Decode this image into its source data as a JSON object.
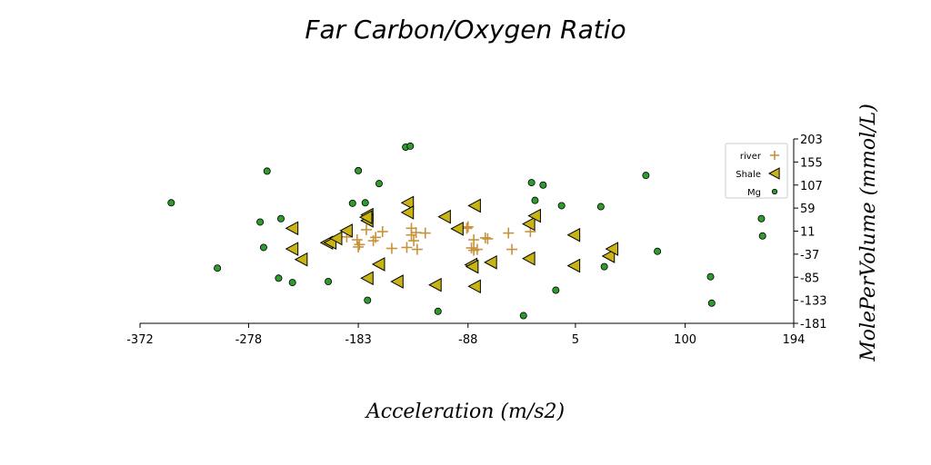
{
  "chart_data": {
    "type": "scatter",
    "title": "Far Carbon/Oxygen Ratio",
    "xlabel": "Acceleration (m/s2)",
    "ylabel": "MolePerVolume (mmol/L)",
    "xlim": [
      -372,
      194
    ],
    "ylim": [
      -181,
      203
    ],
    "xticks": [
      -372,
      -278,
      -183,
      -88,
      5,
      100,
      194
    ],
    "yticks": [
      -181,
      -133,
      -85,
      -37,
      11,
      59,
      107,
      155,
      203
    ],
    "grid": false,
    "legend_position": "top-right",
    "colors": {
      "river": "#c8923c",
      "Shale": "#c8b414",
      "Mg": "#2e9b2e"
    },
    "series": [
      {
        "name": "river",
        "marker": "plus",
        "points": [
          [
            -193,
            -1
          ],
          [
            -184,
            -7
          ],
          [
            -182,
            -17
          ],
          [
            -183,
            -22
          ],
          [
            -176,
            14
          ],
          [
            -170,
            -9
          ],
          [
            -168,
            -2
          ],
          [
            -162,
            10
          ],
          [
            -154,
            -25
          ],
          [
            -141,
            -23
          ],
          [
            -137,
            3
          ],
          [
            -137,
            17
          ],
          [
            -135,
            -9
          ],
          [
            -133,
            8
          ],
          [
            -132,
            -27
          ],
          [
            -125,
            7
          ],
          [
            -89,
            17
          ],
          [
            -88,
            20
          ],
          [
            -85,
            -24
          ],
          [
            -83,
            -7
          ],
          [
            -83,
            -29
          ],
          [
            -80,
            -27
          ],
          [
            -73,
            -3
          ],
          [
            -71,
            -5
          ],
          [
            -53,
            7
          ],
          [
            -50,
            -27
          ],
          [
            -34,
            10
          ]
        ]
      },
      {
        "name": "Shale",
        "marker": "triangle-left",
        "points": [
          [
            -240,
            17
          ],
          [
            -240,
            -26
          ],
          [
            -232,
            -48
          ],
          [
            -210,
            -13
          ],
          [
            -207,
            -13
          ],
          [
            -202,
            -4
          ],
          [
            -193,
            12
          ],
          [
            -175,
            45
          ],
          [
            -175,
            33
          ],
          [
            -176,
            40
          ],
          [
            -175,
            -87
          ],
          [
            -165,
            -58
          ],
          [
            -140,
            70
          ],
          [
            -140,
            50
          ],
          [
            -149,
            -94
          ],
          [
            -116,
            -101
          ],
          [
            -108,
            41
          ],
          [
            -97,
            16
          ],
          [
            -85,
            -59
          ],
          [
            -84,
            -63
          ],
          [
            -82,
            64
          ],
          [
            -82,
            -104
          ],
          [
            -68,
            -54
          ],
          [
            -35,
            -46
          ],
          [
            -35,
            26
          ],
          [
            -30,
            43
          ],
          [
            4,
            3
          ],
          [
            4,
            -61
          ],
          [
            34,
            -41
          ],
          [
            37,
            -26
          ]
        ]
      },
      {
        "name": "Mg",
        "marker": "circle",
        "points": [
          [
            -345,
            70
          ],
          [
            -305,
            -66
          ],
          [
            -268,
            30
          ],
          [
            -265,
            -23
          ],
          [
            -262,
            136
          ],
          [
            -252,
            -87
          ],
          [
            -250,
            37
          ],
          [
            -240,
            -96
          ],
          [
            -209,
            -94
          ],
          [
            -188,
            69
          ],
          [
            -183,
            137
          ],
          [
            -177,
            70
          ],
          [
            -175,
            -133
          ],
          [
            -165,
            110
          ],
          [
            -142,
            186
          ],
          [
            -138,
            188
          ],
          [
            -114,
            -156
          ],
          [
            -40,
            -165
          ],
          [
            -33,
            112
          ],
          [
            -30,
            75
          ],
          [
            -23,
            107
          ],
          [
            -12,
            -112
          ],
          [
            -7,
            64
          ],
          [
            27,
            62
          ],
          [
            30,
            -63
          ],
          [
            66,
            127
          ],
          [
            76,
            -31
          ],
          [
            122,
            -84
          ],
          [
            123,
            -139
          ],
          [
            166,
            37
          ],
          [
            167,
            1
          ]
        ]
      }
    ]
  }
}
